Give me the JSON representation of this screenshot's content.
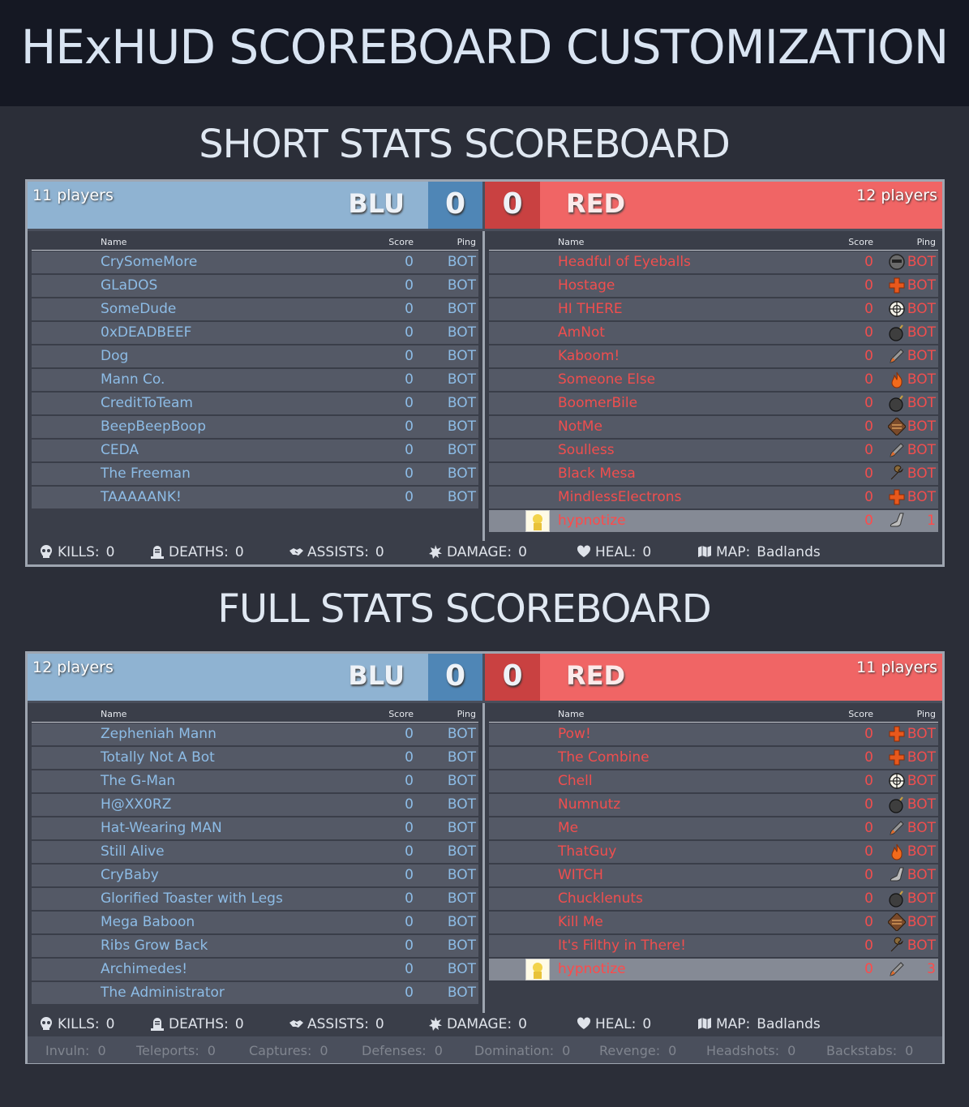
{
  "title": "HExHUD SCOREBOARD CUSTOMIZATION",
  "short": {
    "section_title": "SHORT STATS SCOREBOARD",
    "blu": {
      "players": "11 players",
      "team": "BLU",
      "score": "0"
    },
    "red": {
      "players": "12 players",
      "team": "RED",
      "score": "0"
    },
    "headers": {
      "name": "Name",
      "score": "Score",
      "ping": "Ping"
    },
    "blu_rows": [
      {
        "name": "CrySomeMore",
        "score": "0",
        "ping": "BOT"
      },
      {
        "name": "GLaDOS",
        "score": "0",
        "ping": "BOT"
      },
      {
        "name": "SomeDude",
        "score": "0",
        "ping": "BOT"
      },
      {
        "name": "0xDEADBEEF",
        "score": "0",
        "ping": "BOT"
      },
      {
        "name": "Dog",
        "score": "0",
        "ping": "BOT"
      },
      {
        "name": "Mann Co.",
        "score": "0",
        "ping": "BOT"
      },
      {
        "name": "CreditToTeam",
        "score": "0",
        "ping": "BOT"
      },
      {
        "name": "BeepBeepBoop",
        "score": "0",
        "ping": "BOT"
      },
      {
        "name": "CEDA",
        "score": "0",
        "ping": "BOT"
      },
      {
        "name": "The Freeman",
        "score": "0",
        "ping": "BOT"
      },
      {
        "name": "TAAAAANK!",
        "score": "0",
        "ping": "BOT"
      }
    ],
    "red_rows": [
      {
        "name": "Headful of Eyeballs",
        "score": "0",
        "ping": "BOT",
        "icon": "spy-icon"
      },
      {
        "name": "Hostage",
        "score": "0",
        "ping": "BOT",
        "icon": "medic-cross-icon"
      },
      {
        "name": "HI THERE",
        "score": "0",
        "ping": "BOT",
        "icon": "sniper-crosshair-icon"
      },
      {
        "name": "AmNot",
        "score": "0",
        "ping": "BOT",
        "icon": "demoman-bomb-icon"
      },
      {
        "name": "Kaboom!",
        "score": "0",
        "ping": "BOT",
        "icon": "soldier-rocket-icon"
      },
      {
        "name": "Someone Else",
        "score": "0",
        "ping": "BOT",
        "icon": "pyro-flame-icon"
      },
      {
        "name": "BoomerBile",
        "score": "0",
        "ping": "BOT",
        "icon": "demoman-bomb-icon"
      },
      {
        "name": "NotMe",
        "score": "0",
        "ping": "BOT",
        "icon": "heavy-ammo-icon"
      },
      {
        "name": "Soulless",
        "score": "0",
        "ping": "BOT",
        "icon": "soldier-rocket-icon"
      },
      {
        "name": "Black Mesa",
        "score": "0",
        "ping": "BOT",
        "icon": "engineer-wrench-icon"
      },
      {
        "name": "MindlessElectrons",
        "score": "0",
        "ping": "BOT",
        "icon": "medic-cross-icon"
      },
      {
        "name": "hypnotize",
        "score": "0",
        "ping": "1",
        "icon": "scout-boot-icon",
        "self": true
      }
    ],
    "stats": {
      "kills_label": "KILLS:",
      "kills": "0",
      "deaths_label": "DEATHS:",
      "deaths": "0",
      "assists_label": "ASSISTS:",
      "assists": "0",
      "damage_label": "DAMAGE:",
      "damage": "0",
      "heal_label": "HEAL:",
      "heal": "0",
      "map_label": "MAP:",
      "map": "Badlands"
    }
  },
  "full": {
    "section_title": "FULL STATS SCOREBOARD",
    "blu": {
      "players": "12 players",
      "team": "BLU",
      "score": "0"
    },
    "red": {
      "players": "11 players",
      "team": "RED",
      "score": "0"
    },
    "headers": {
      "name": "Name",
      "score": "Score",
      "ping": "Ping"
    },
    "blu_rows": [
      {
        "name": "Zepheniah Mann",
        "score": "0",
        "ping": "BOT"
      },
      {
        "name": "Totally Not A Bot",
        "score": "0",
        "ping": "BOT"
      },
      {
        "name": "The G-Man",
        "score": "0",
        "ping": "BOT"
      },
      {
        "name": "H@XX0RZ",
        "score": "0",
        "ping": "BOT"
      },
      {
        "name": "Hat-Wearing MAN",
        "score": "0",
        "ping": "BOT"
      },
      {
        "name": "Still Alive",
        "score": "0",
        "ping": "BOT"
      },
      {
        "name": "CryBaby",
        "score": "0",
        "ping": "BOT"
      },
      {
        "name": "Glorified Toaster with Legs",
        "score": "0",
        "ping": "BOT"
      },
      {
        "name": "Mega Baboon",
        "score": "0",
        "ping": "BOT"
      },
      {
        "name": "Ribs Grow Back",
        "score": "0",
        "ping": "BOT"
      },
      {
        "name": "Archimedes!",
        "score": "0",
        "ping": "BOT"
      },
      {
        "name": "The Administrator",
        "score": "0",
        "ping": "BOT"
      }
    ],
    "red_rows": [
      {
        "name": "Pow!",
        "score": "0",
        "ping": "BOT",
        "icon": "medic-cross-icon"
      },
      {
        "name": "The Combine",
        "score": "0",
        "ping": "BOT",
        "icon": "medic-cross-icon"
      },
      {
        "name": "Chell",
        "score": "0",
        "ping": "BOT",
        "icon": "sniper-crosshair-icon"
      },
      {
        "name": "Numnutz",
        "score": "0",
        "ping": "BOT",
        "icon": "demoman-bomb-icon"
      },
      {
        "name": "Me",
        "score": "0",
        "ping": "BOT",
        "icon": "soldier-rocket-icon"
      },
      {
        "name": "ThatGuy",
        "score": "0",
        "ping": "BOT",
        "icon": "pyro-flame-icon"
      },
      {
        "name": "WITCH",
        "score": "0",
        "ping": "BOT",
        "icon": "scout-boot-icon"
      },
      {
        "name": "Chucklenuts",
        "score": "0",
        "ping": "BOT",
        "icon": "demoman-bomb-icon"
      },
      {
        "name": "Kill Me",
        "score": "0",
        "ping": "BOT",
        "icon": "heavy-ammo-icon"
      },
      {
        "name": "It's Filthy in There!",
        "score": "0",
        "ping": "BOT",
        "icon": "engineer-wrench-icon"
      },
      {
        "name": "hypnotize",
        "score": "0",
        "ping": "3",
        "icon": "soldier-rocket-icon",
        "self": true
      }
    ],
    "stats": {
      "kills_label": "KILLS:",
      "kills": "0",
      "deaths_label": "DEATHS:",
      "deaths": "0",
      "assists_label": "ASSISTS:",
      "assists": "0",
      "damage_label": "DAMAGE:",
      "damage": "0",
      "heal_label": "HEAL:",
      "heal": "0",
      "map_label": "MAP:",
      "map": "Badlands"
    },
    "extra": {
      "invuln_label": "Invuln:",
      "invuln": "0",
      "teleports_label": "Teleports:",
      "teleports": "0",
      "captures_label": "Captures:",
      "captures": "0",
      "defenses_label": "Defenses:",
      "defenses": "0",
      "domination_label": "Domination:",
      "domination": "0",
      "revenge_label": "Revenge:",
      "revenge": "0",
      "headshots_label": "Headshots:",
      "headshots": "0",
      "backstabs_label": "Backstabs:",
      "backstabs": "0"
    }
  }
}
